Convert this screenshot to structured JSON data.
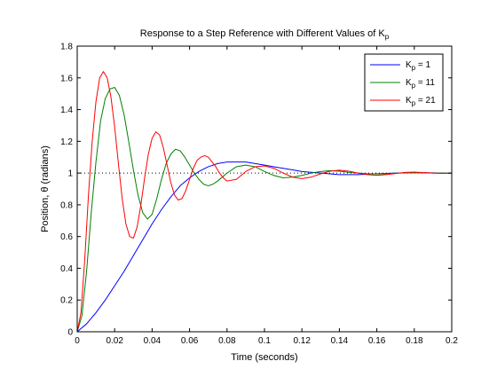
{
  "chart_data": {
    "type": "line",
    "title": {
      "main": "Response to a Step Reference with Different Values of K",
      "subscript": "p"
    },
    "xlabel": "Time (seconds)",
    "ylabel": "Position, θ (radians)",
    "xlim": [
      0,
      0.2
    ],
    "ylim": [
      0,
      1.8
    ],
    "xticks": [
      0,
      0.02,
      0.04,
      0.06,
      0.08,
      0.1,
      0.12,
      0.14,
      0.16,
      0.18,
      0.2
    ],
    "xtick_labels": [
      "0",
      "0.02",
      "0.04",
      "0.06",
      "0.08",
      "0.1",
      "0.12",
      "0.14",
      "0.16",
      "0.18",
      "0.2"
    ],
    "yticks": [
      0,
      0.2,
      0.4,
      0.6,
      0.8,
      1,
      1.2,
      1.4,
      1.6,
      1.8
    ],
    "ytick_labels": [
      "0",
      "0.2",
      "0.4",
      "0.6",
      "0.8",
      "1",
      "1.2",
      "1.4",
      "1.6",
      "1.8"
    ],
    "grid": false,
    "legend_position": "top-right",
    "reference": {
      "y": 1,
      "style": "dotted",
      "color": "#000000"
    },
    "series": [
      {
        "name": "K",
        "name_subscript": "p",
        "name_suffix": " = 1",
        "color": "#0000ff",
        "x": [
          0,
          0.005,
          0.01,
          0.015,
          0.02,
          0.025,
          0.03,
          0.035,
          0.04,
          0.045,
          0.05,
          0.055,
          0.06,
          0.065,
          0.07,
          0.075,
          0.08,
          0.085,
          0.09,
          0.095,
          0.1,
          0.105,
          0.11,
          0.115,
          0.12,
          0.125,
          0.13,
          0.135,
          0.14,
          0.145,
          0.15,
          0.155,
          0.16,
          0.165,
          0.17,
          0.175,
          0.18,
          0.185,
          0.19,
          0.195,
          0.2
        ],
        "y": [
          0,
          0.05,
          0.12,
          0.2,
          0.29,
          0.38,
          0.48,
          0.58,
          0.68,
          0.77,
          0.85,
          0.92,
          0.97,
          1.01,
          1.04,
          1.06,
          1.07,
          1.07,
          1.07,
          1.06,
          1.05,
          1.04,
          1.03,
          1.02,
          1.01,
          1.005,
          1.0,
          0.995,
          0.99,
          0.99,
          0.99,
          0.993,
          0.996,
          0.998,
          1.0,
          1.001,
          1.002,
          1.002,
          1.001,
          1.0,
          1.0
        ]
      },
      {
        "name": "K",
        "name_subscript": "p",
        "name_suffix": " = 11",
        "color": "#008000",
        "x": [
          0,
          0.0025,
          0.005,
          0.0075,
          0.01,
          0.0125,
          0.015,
          0.0175,
          0.02,
          0.0225,
          0.025,
          0.0275,
          0.03,
          0.0325,
          0.035,
          0.0375,
          0.04,
          0.0425,
          0.045,
          0.0475,
          0.05,
          0.0525,
          0.055,
          0.0575,
          0.06,
          0.0625,
          0.065,
          0.0675,
          0.07,
          0.0725,
          0.075,
          0.08,
          0.085,
          0.09,
          0.095,
          0.1,
          0.105,
          0.11,
          0.115,
          0.12,
          0.125,
          0.13,
          0.135,
          0.14,
          0.145,
          0.15,
          0.155,
          0.16,
          0.165,
          0.17,
          0.175,
          0.18,
          0.185,
          0.19,
          0.195,
          0.2
        ],
        "y": [
          0,
          0.1,
          0.38,
          0.75,
          1.07,
          1.33,
          1.47,
          1.53,
          1.54,
          1.49,
          1.37,
          1.2,
          1.02,
          0.86,
          0.75,
          0.71,
          0.74,
          0.84,
          0.96,
          1.06,
          1.12,
          1.15,
          1.14,
          1.1,
          1.05,
          1.0,
          0.96,
          0.93,
          0.92,
          0.93,
          0.95,
          1.0,
          1.04,
          1.05,
          1.04,
          1.01,
          0.985,
          0.97,
          0.975,
          0.985,
          1.0,
          1.01,
          1.015,
          1.012,
          1.005,
          1.0,
          0.996,
          0.994,
          0.996,
          0.999,
          1.001,
          1.003,
          1.002,
          1.0,
          1.0,
          1.0
        ]
      },
      {
        "name": "K",
        "name_subscript": "p",
        "name_suffix": " = 21",
        "color": "#ff0000",
        "x": [
          0,
          0.002,
          0.004,
          0.006,
          0.008,
          0.01,
          0.012,
          0.014,
          0.016,
          0.018,
          0.02,
          0.022,
          0.024,
          0.026,
          0.028,
          0.03,
          0.032,
          0.034,
          0.036,
          0.038,
          0.04,
          0.042,
          0.044,
          0.046,
          0.048,
          0.05,
          0.052,
          0.054,
          0.056,
          0.058,
          0.06,
          0.062,
          0.064,
          0.066,
          0.068,
          0.07,
          0.072,
          0.074,
          0.076,
          0.078,
          0.08,
          0.085,
          0.09,
          0.095,
          0.1,
          0.105,
          0.11,
          0.115,
          0.12,
          0.125,
          0.13,
          0.135,
          0.14,
          0.145,
          0.15,
          0.155,
          0.16,
          0.165,
          0.17,
          0.175,
          0.18,
          0.185,
          0.19,
          0.195,
          0.2
        ],
        "y": [
          0,
          0.12,
          0.45,
          0.86,
          1.2,
          1.45,
          1.6,
          1.64,
          1.6,
          1.48,
          1.29,
          1.06,
          0.84,
          0.68,
          0.6,
          0.59,
          0.66,
          0.8,
          0.97,
          1.12,
          1.22,
          1.26,
          1.24,
          1.16,
          1.05,
          0.94,
          0.86,
          0.83,
          0.84,
          0.89,
          0.96,
          1.03,
          1.08,
          1.1,
          1.11,
          1.1,
          1.07,
          1.04,
          1.0,
          0.97,
          0.95,
          0.96,
          1.01,
          1.04,
          1.045,
          1.03,
          1.0,
          0.975,
          0.965,
          0.975,
          0.995,
          1.012,
          1.018,
          1.012,
          1.0,
          0.99,
          0.986,
          0.99,
          0.997,
          1.004,
          1.006,
          1.003,
          1.0,
          0.998,
          1.0
        ]
      }
    ]
  }
}
